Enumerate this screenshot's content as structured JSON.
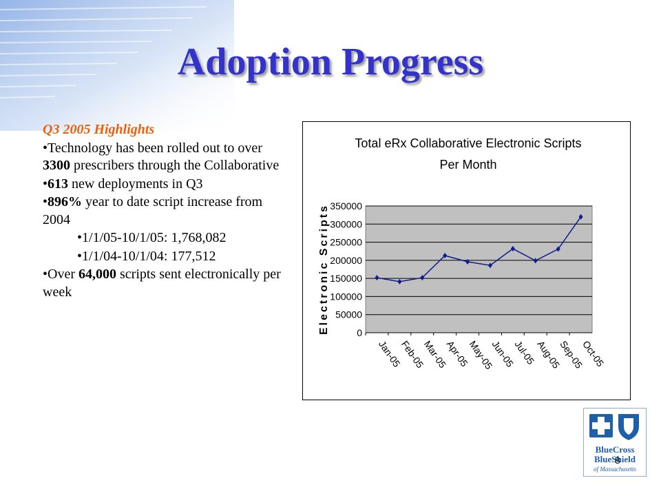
{
  "slide": {
    "title": "Adoption Progress",
    "page_number": "8"
  },
  "highlights": {
    "heading": "Q3 2005 Highlights",
    "items": [
      {
        "bullet": "•",
        "bold": "",
        "pre": "Technology has been rolled out to over ",
        "strong": "3300",
        "post": " prescribers through the Collaborative"
      },
      {
        "bullet": "•",
        "pre": "",
        "strong": "613",
        "post": " new deployments in Q3"
      },
      {
        "bullet": "•",
        "pre": "",
        "strong": "896%",
        "post": " year to date script increase from 2004"
      },
      {
        "bullet": "•",
        "pre": "",
        "strong": "",
        "post": "1/1/05-10/1/05: 1,768,082"
      },
      {
        "bullet": "•",
        "pre": "",
        "strong": "",
        "post": "1/1/04-10/1/04: 177,512"
      },
      {
        "bullet": "•",
        "pre": "Over ",
        "strong": "64,000",
        "post": " scripts sent electronically per week"
      }
    ]
  },
  "logo": {
    "line1": "BlueCross",
    "line2": "BlueShield",
    "line3": "of Massachusetts",
    "brand_color": "#1f5fa8"
  },
  "chart_data": {
    "type": "line",
    "title_line1": "Total eRx Collaborative Electronic Scripts",
    "title_line2": "Per Month",
    "ylabel": "Electronic Scripts",
    "xlabel": "",
    "categories": [
      "Jan-05",
      "Feb-05",
      "Mar-05",
      "Apr-05",
      "May-05",
      "Jun-05",
      "Jul-05",
      "Aug-05",
      "Sep-05",
      "Oct-05"
    ],
    "values": [
      152000,
      141000,
      152000,
      213000,
      196000,
      186000,
      232000,
      199000,
      231000,
      320000
    ],
    "ylim": [
      0,
      350000
    ],
    "yticks": [
      "0",
      "50000",
      "100000",
      "150000",
      "200000",
      "250000",
      "300000",
      "350000"
    ],
    "grid": true,
    "legend": "none",
    "line_color": "#0d1b8c",
    "plot_background": "#c0c0c0"
  }
}
